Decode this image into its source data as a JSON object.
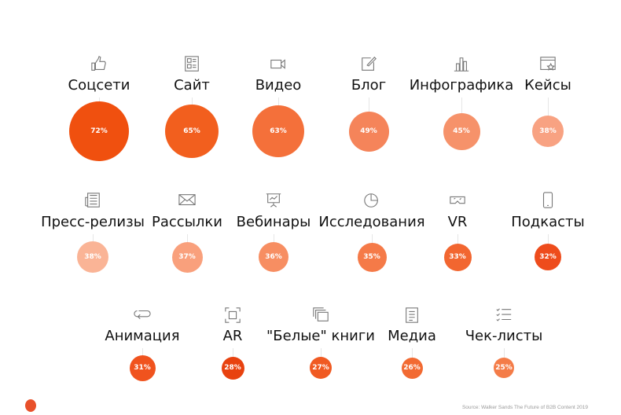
{
  "chart_data": {
    "type": "bubble",
    "title": "",
    "unit": "%",
    "items": [
      {
        "label": "Соцсети",
        "value": 72,
        "icon": "thumbs-up-icon",
        "color": "#f0500f",
        "row": 0
      },
      {
        "label": "Сайт",
        "value": 65,
        "icon": "website-layout-icon",
        "color": "#f25f1e",
        "row": 0
      },
      {
        "label": "Видео",
        "value": 63,
        "icon": "video-camera-icon",
        "color": "#f4703a",
        "row": 0
      },
      {
        "label": "Блог",
        "value": 49,
        "icon": "edit-note-icon",
        "color": "#f5845a",
        "row": 0
      },
      {
        "label": "Инфографика",
        "value": 45,
        "icon": "bar-chart-icon",
        "color": "#f6926a",
        "row": 0
      },
      {
        "label": "Кейсы",
        "value": 38,
        "icon": "browser-star-icon",
        "color": "#f8a282",
        "row": 0
      },
      {
        "label": "Пресс-релизы",
        "value": 38,
        "icon": "newspaper-icon",
        "color": "#fab496",
        "row": 1
      },
      {
        "label": "Рассылки",
        "value": 37,
        "icon": "envelope-icon",
        "color": "#f9a07c",
        "row": 1
      },
      {
        "label": "Вебинары",
        "value": 36,
        "icon": "presentation-board-icon",
        "color": "#f78e62",
        "row": 1
      },
      {
        "label": "Исследования",
        "value": 35,
        "icon": "pie-chart-icon",
        "color": "#f57a48",
        "row": 1
      },
      {
        "label": "VR",
        "value": 33,
        "icon": "vr-headset-icon",
        "color": "#f26630",
        "row": 1
      },
      {
        "label": "Подкасты",
        "value": 32,
        "icon": "smartphone-icon",
        "color": "#ee4c1c",
        "row": 1
      },
      {
        "label": "Анимация",
        "value": 31,
        "icon": "loop-icon",
        "color": "#f0531e",
        "row": 2
      },
      {
        "label": "AR",
        "value": 28,
        "icon": "ar-frame-icon",
        "color": "#e8420f",
        "row": 2
      },
      {
        "label": "\"Белые\" книги",
        "value": 27,
        "icon": "stacked-documents-icon",
        "color": "#f05a22",
        "row": 2
      },
      {
        "label": "Медиа",
        "value": 26,
        "icon": "document-icon",
        "color": "#f26a32",
        "row": 2
      },
      {
        "label": "Чек-листы",
        "value": 25,
        "icon": "checklist-icon",
        "color": "#f47c48",
        "row": 2
      }
    ]
  },
  "footer": {
    "source": "Source: Walker Sands The Future of B2B Content 2019"
  }
}
